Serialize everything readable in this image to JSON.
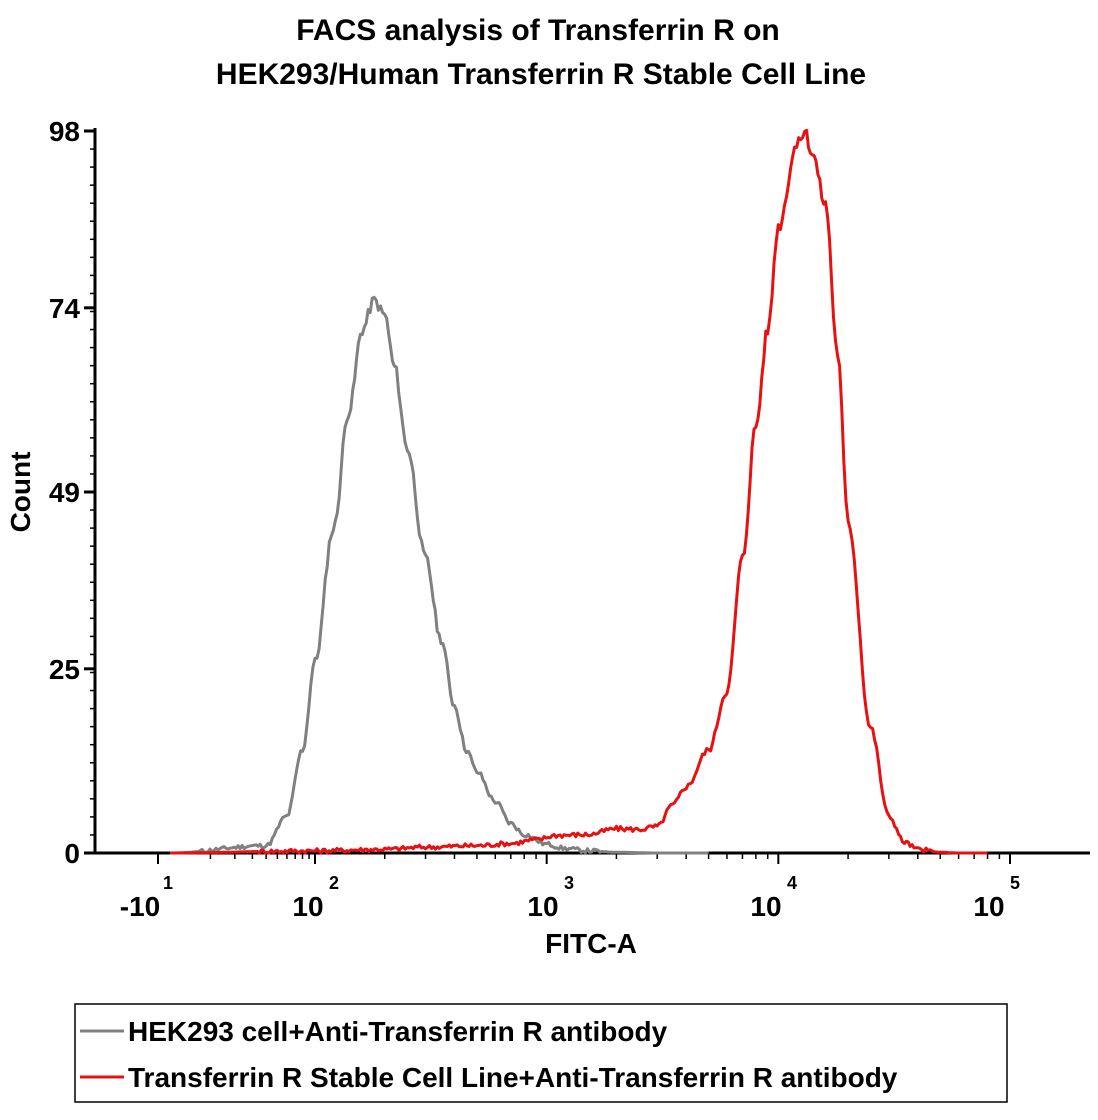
{
  "chart_data": {
    "type": "line",
    "title_line1": "FACS analysis of Transferrin R on",
    "title_line2": "HEK293/Human Transferrin R Stable Cell Line",
    "xlabel": "FITC-A",
    "ylabel": "Count",
    "x_scale": "biexponential",
    "xlim": [
      -10,
      100000
    ],
    "ylim": [
      0,
      98
    ],
    "y_ticks": [
      "0",
      "25",
      "49",
      "74",
      "98"
    ],
    "x_ticks": [
      {
        "base": "-10",
        "exp": "1"
      },
      {
        "base": "10",
        "exp": "2"
      },
      {
        "base": "10",
        "exp": "3"
      },
      {
        "base": "10",
        "exp": "4"
      },
      {
        "base": "10",
        "exp": "5"
      }
    ],
    "legend_position": "bottom",
    "series": [
      {
        "name": "HEK293 cell+Anti-Transferrin R antibody",
        "color": "#808080",
        "x": [
          0,
          40,
          60,
          80,
          100,
          120,
          140,
          160,
          180,
          200,
          220,
          250,
          300,
          350,
          400,
          450,
          500,
          600,
          700,
          800,
          1000,
          1200,
          1500,
          2000,
          3000,
          5000
        ],
        "y": [
          0,
          1,
          5,
          14,
          26,
          44,
          60,
          71,
          75,
          73,
          66,
          55,
          40,
          29,
          20,
          14,
          11,
          7,
          4,
          2.5,
          1.2,
          0.6,
          0.3,
          0.1,
          0,
          0
        ]
      },
      {
        "name": "Transferrin R Stable Cell Line+Anti-Transferrin R antibody",
        "color": "#e81010",
        "x": [
          0,
          100,
          200,
          300,
          500,
          700,
          900,
          1100,
          1500,
          2000,
          2500,
          3000,
          3500,
          4000,
          5000,
          6000,
          7000,
          8000,
          9000,
          10000,
          12000,
          13000,
          14000,
          16000,
          18000,
          20000,
          25000,
          30000,
          35000,
          40000,
          50000,
          60000,
          80000
        ],
        "y": [
          0,
          0.3,
          0.5,
          0.8,
          1,
          1.3,
          1.8,
          2.4,
          2.5,
          3.3,
          3.2,
          3.6,
          6.5,
          9,
          14,
          22,
          40,
          58,
          71,
          85,
          96,
          98,
          95,
          88,
          68,
          45,
          17,
          5,
          1.5,
          0.5,
          0.1,
          0,
          0
        ]
      }
    ]
  }
}
